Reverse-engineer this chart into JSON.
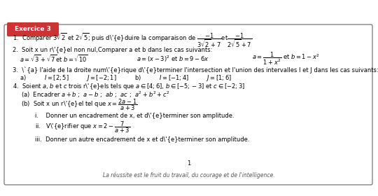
{
  "title": "Exercice 3",
  "title_bg": "#cc3333",
  "title_fg": "white",
  "box_edge": "#666666",
  "background": "white",
  "footer": "La réussite est le fruit du travail, du courage et de l'intelligence.",
  "page_number": "1",
  "font_size": 6.0,
  "title_font_size": 6.5
}
